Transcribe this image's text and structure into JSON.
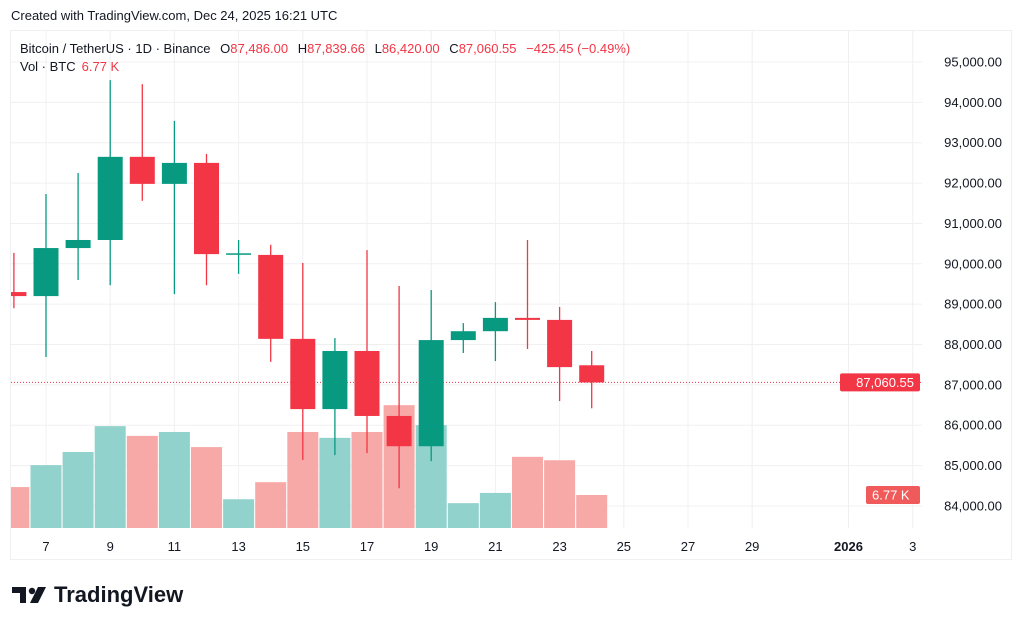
{
  "credit": "Created with TradingView.com, Dec 24, 2025 16:21 UTC",
  "legend": {
    "symbol": "Bitcoin / TetherUS · 1D · Binance",
    "o_label": "O",
    "o": "87,486.00",
    "h_label": "H",
    "h": "87,839.66",
    "l_label": "L",
    "l": "86,420.00",
    "c_label": "C",
    "c": "87,060.55",
    "change": "−425.45 (−0.49%)",
    "vol_label": "Vol · BTC",
    "vol": "6.77 K"
  },
  "logo": {
    "text": "TradingView"
  },
  "colors": {
    "up": "#089981",
    "down": "#f23645",
    "vol_up": "#92d2cc",
    "vol_down": "#f7a9a7",
    "grid": "#f0f0f3"
  },
  "chart_data": {
    "type": "candlestick",
    "symbol": "BTCUSDT",
    "interval": "1D",
    "dates": [
      "2025-12-06",
      "2025-12-07",
      "2025-12-08",
      "2025-12-09",
      "2025-12-10",
      "2025-12-11",
      "2025-12-12",
      "2025-12-13",
      "2025-12-14",
      "2025-12-15",
      "2025-12-16",
      "2025-12-17",
      "2025-12-18",
      "2025-12-19",
      "2025-12-20",
      "2025-12-21",
      "2025-12-22",
      "2025-12-23",
      "2025-12-24"
    ],
    "open": [
      89300,
      89200,
      90390,
      90590,
      92650,
      91980,
      92500,
      90240,
      90220,
      88140,
      86400,
      87840,
      86230,
      85480,
      88110,
      88330,
      88660,
      88610,
      87486.0
    ],
    "high": [
      90270,
      91730,
      92250,
      94550,
      94450,
      93540,
      92720,
      90590,
      90470,
      90020,
      88160,
      90340,
      89450,
      89350,
      88530,
      89050,
      90590,
      88930,
      87839.66
    ],
    "low": [
      88900,
      87690,
      89600,
      89470,
      91560,
      89250,
      89470,
      89750,
      87570,
      85140,
      85260,
      85310,
      84440,
      85110,
      87790,
      87590,
      87890,
      86600,
      86420.0
    ],
    "close": [
      89200,
      90390,
      90590,
      92650,
      91980,
      92500,
      90240,
      90260,
      88140,
      86400,
      87840,
      86230,
      85480,
      88110,
      88330,
      88660,
      88610,
      87440,
      87060.55
    ],
    "volume_k": [
      8.4,
      12.9,
      15.6,
      20.9,
      18.9,
      19.7,
      16.6,
      5.9,
      9.4,
      19.7,
      18.5,
      19.7,
      25.2,
      21.1,
      5.1,
      7.2,
      14.6,
      13.9,
      6.77
    ],
    "y_ticks": [
      "95,000.00",
      "94,000.00",
      "93,000.00",
      "92,000.00",
      "91,000.00",
      "90,000.00",
      "89,000.00",
      "88,000.00",
      "87,000.00",
      "86,000.00",
      "85,000.00",
      "84,000.00"
    ],
    "y_tick_values": [
      95000,
      94000,
      93000,
      92000,
      91000,
      90000,
      89000,
      88000,
      87000,
      86000,
      85000,
      84000
    ],
    "x_ticks": [
      {
        "label": "7",
        "date": "2025-12-07"
      },
      {
        "label": "9",
        "date": "2025-12-09"
      },
      {
        "label": "11",
        "date": "2025-12-11"
      },
      {
        "label": "13",
        "date": "2025-12-13"
      },
      {
        "label": "15",
        "date": "2025-12-15"
      },
      {
        "label": "17",
        "date": "2025-12-17"
      },
      {
        "label": "19",
        "date": "2025-12-19"
      },
      {
        "label": "21",
        "date": "2025-12-21"
      },
      {
        "label": "23",
        "date": "2025-12-23"
      },
      {
        "label": "25",
        "date": "2025-12-25"
      },
      {
        "label": "27",
        "date": "2025-12-27"
      },
      {
        "label": "29",
        "date": "2025-12-29"
      },
      {
        "label": "2026",
        "date": "2026-01-01",
        "bold": true
      },
      {
        "label": "3",
        "date": "2026-01-03"
      }
    ],
    "last_price_label": "87,060.55",
    "last_price": 87060.55,
    "last_volume_label": "6.77 K",
    "grid": true
  }
}
